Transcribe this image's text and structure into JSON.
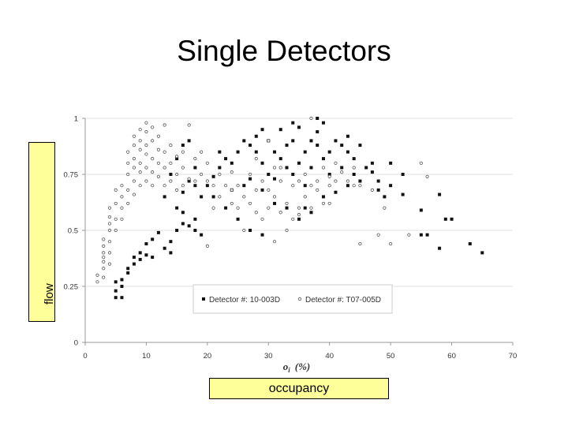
{
  "slide": {
    "title": "Single Detectors",
    "flow_label": "flow",
    "occupancy_label": "occupancy"
  },
  "chart_data": {
    "type": "scatter",
    "xlabel": "o_i (%)",
    "xlabel_main": "o",
    "xlabel_sub": "i",
    "xlabel_unit": "(%)",
    "xlim": [
      0,
      70
    ],
    "ylim": [
      0,
      1
    ],
    "x_ticks": [
      "0",
      "10",
      "20",
      "30",
      "40",
      "50",
      "60",
      "70"
    ],
    "x_tick_values": [
      0,
      10,
      20,
      30,
      40,
      50,
      60,
      70
    ],
    "y_ticks": [
      "0",
      "0.25",
      "0.5",
      "0.75",
      "1"
    ],
    "y_tick_values": [
      0,
      0.25,
      0.5,
      0.75,
      1
    ],
    "grid": "horizontal",
    "legend_position": "bottom-center-inside",
    "series": [
      {
        "name": "Detector #: 10-003D",
        "marker": "filled-square",
        "color": "#111111",
        "points": [
          [
            5,
            0.2
          ],
          [
            6,
            0.2
          ],
          [
            5,
            0.23
          ],
          [
            6,
            0.25
          ],
          [
            5,
            0.27
          ],
          [
            6,
            0.28
          ],
          [
            7,
            0.31
          ],
          [
            7,
            0.33
          ],
          [
            8,
            0.35
          ],
          [
            8,
            0.38
          ],
          [
            9,
            0.37
          ],
          [
            9,
            0.4
          ],
          [
            10,
            0.39
          ],
          [
            11,
            0.38
          ],
          [
            10,
            0.44
          ],
          [
            11,
            0.46
          ],
          [
            12,
            0.49
          ],
          [
            13,
            0.42
          ],
          [
            14,
            0.4
          ],
          [
            14,
            0.45
          ],
          [
            15,
            0.5
          ],
          [
            16,
            0.53
          ],
          [
            17,
            0.52
          ],
          [
            18,
            0.55
          ],
          [
            18,
            0.5
          ],
          [
            19,
            0.48
          ],
          [
            13,
            0.65
          ],
          [
            15,
            0.6
          ],
          [
            16,
            0.58
          ],
          [
            16,
            0.67
          ],
          [
            17,
            0.72
          ],
          [
            18,
            0.7
          ],
          [
            19,
            0.65
          ],
          [
            14,
            0.75
          ],
          [
            15,
            0.82
          ],
          [
            16,
            0.88
          ],
          [
            17,
            0.9
          ],
          [
            18,
            0.78
          ],
          [
            20,
            0.7
          ],
          [
            21,
            0.74
          ],
          [
            22,
            0.78
          ],
          [
            22,
            0.85
          ],
          [
            23,
            0.82
          ],
          [
            24,
            0.8
          ],
          [
            25,
            0.85
          ],
          [
            24,
            0.68
          ],
          [
            26,
            0.9
          ],
          [
            26,
            0.7
          ],
          [
            27,
            0.88
          ],
          [
            28,
            0.85
          ],
          [
            28,
            0.92
          ],
          [
            29,
            0.8
          ],
          [
            29,
            0.95
          ],
          [
            30,
            0.75
          ],
          [
            30,
            0.9
          ],
          [
            31,
            0.85
          ],
          [
            32,
            0.82
          ],
          [
            32,
            0.95
          ],
          [
            33,
            0.78
          ],
          [
            33,
            0.88
          ],
          [
            34,
            0.9
          ],
          [
            34,
            0.75
          ],
          [
            35,
            0.8
          ],
          [
            35,
            0.96
          ],
          [
            36,
            0.85
          ],
          [
            36,
            0.7
          ],
          [
            37,
            0.9
          ],
          [
            37,
            0.78
          ],
          [
            38,
            0.88
          ],
          [
            38,
            0.94
          ],
          [
            39,
            0.82
          ],
          [
            39,
            0.98
          ],
          [
            40,
            0.85
          ],
          [
            40,
            0.75
          ],
          [
            41,
            0.9
          ],
          [
            42,
            0.88
          ],
          [
            42,
            0.78
          ],
          [
            43,
            0.85
          ],
          [
            43,
            0.7
          ],
          [
            44,
            0.82
          ],
          [
            44,
            0.75
          ],
          [
            45,
            0.88
          ],
          [
            45,
            0.72
          ],
          [
            46,
            0.78
          ],
          [
            47,
            0.76
          ],
          [
            48,
            0.72
          ],
          [
            48,
            0.68
          ],
          [
            49,
            0.65
          ],
          [
            50,
            0.8
          ],
          [
            50,
            0.7
          ],
          [
            52,
            0.75
          ],
          [
            52,
            0.66
          ],
          [
            55,
            0.59
          ],
          [
            56,
            0.48
          ],
          [
            58,
            0.66
          ],
          [
            58,
            0.42
          ],
          [
            59,
            0.55
          ],
          [
            60,
            0.55
          ],
          [
            63,
            0.44
          ],
          [
            65,
            0.4
          ],
          [
            27,
            0.73
          ],
          [
            29,
            0.68
          ],
          [
            31,
            0.62
          ],
          [
            33,
            0.6
          ],
          [
            35,
            0.55
          ],
          [
            37,
            0.58
          ],
          [
            39,
            0.65
          ],
          [
            41,
            0.67
          ],
          [
            23,
            0.6
          ],
          [
            25,
            0.55
          ],
          [
            27,
            0.5
          ],
          [
            29,
            0.48
          ],
          [
            21,
            0.65
          ],
          [
            34,
            0.98
          ],
          [
            38,
            1.0
          ],
          [
            36,
            0.6
          ],
          [
            31,
            0.73
          ],
          [
            43,
            0.92
          ],
          [
            47,
            0.8
          ],
          [
            55,
            0.48
          ]
        ]
      },
      {
        "name": "Detector #: T07-005D",
        "marker": "open-circle",
        "color": "#555555",
        "points": [
          [
            2,
            0.27
          ],
          [
            2,
            0.3
          ],
          [
            3,
            0.29
          ],
          [
            3,
            0.33
          ],
          [
            3,
            0.36
          ],
          [
            3,
            0.38
          ],
          [
            3,
            0.4
          ],
          [
            3,
            0.43
          ],
          [
            3,
            0.46
          ],
          [
            4,
            0.35
          ],
          [
            4,
            0.4
          ],
          [
            4,
            0.45
          ],
          [
            4,
            0.5
          ],
          [
            4,
            0.53
          ],
          [
            4,
            0.56
          ],
          [
            4,
            0.6
          ],
          [
            5,
            0.5
          ],
          [
            5,
            0.55
          ],
          [
            5,
            0.62
          ],
          [
            5,
            0.68
          ],
          [
            6,
            0.55
          ],
          [
            6,
            0.6
          ],
          [
            6,
            0.65
          ],
          [
            6,
            0.7
          ],
          [
            7,
            0.62
          ],
          [
            7,
            0.68
          ],
          [
            7,
            0.75
          ],
          [
            7,
            0.8
          ],
          [
            7,
            0.85
          ],
          [
            8,
            0.66
          ],
          [
            8,
            0.72
          ],
          [
            8,
            0.78
          ],
          [
            8,
            0.82
          ],
          [
            8,
            0.88
          ],
          [
            8,
            0.92
          ],
          [
            9,
            0.7
          ],
          [
            9,
            0.76
          ],
          [
            9,
            0.8
          ],
          [
            9,
            0.86
          ],
          [
            9,
            0.9
          ],
          [
            9,
            0.95
          ],
          [
            10,
            0.72
          ],
          [
            10,
            0.78
          ],
          [
            10,
            0.84
          ],
          [
            10,
            0.88
          ],
          [
            10,
            0.94
          ],
          [
            10,
            0.98
          ],
          [
            11,
            0.7
          ],
          [
            11,
            0.76
          ],
          [
            11,
            0.82
          ],
          [
            11,
            0.9
          ],
          [
            11,
            0.96
          ],
          [
            12,
            0.74
          ],
          [
            12,
            0.8
          ],
          [
            12,
            0.86
          ],
          [
            12,
            0.92
          ],
          [
            13,
            0.7
          ],
          [
            13,
            0.78
          ],
          [
            13,
            0.85
          ],
          [
            13,
            0.97
          ],
          [
            14,
            0.72
          ],
          [
            14,
            0.8
          ],
          [
            14,
            0.88
          ],
          [
            15,
            0.68
          ],
          [
            15,
            0.75
          ],
          [
            15,
            0.83
          ],
          [
            16,
            0.7
          ],
          [
            16,
            0.78
          ],
          [
            16,
            0.85
          ],
          [
            17,
            0.73
          ],
          [
            17,
            0.97
          ],
          [
            18,
            0.72
          ],
          [
            18,
            0.82
          ],
          [
            19,
            0.75
          ],
          [
            19,
            0.85
          ],
          [
            20,
            0.72
          ],
          [
            20,
            0.8
          ],
          [
            20,
            0.43
          ],
          [
            21,
            0.7
          ],
          [
            21,
            0.6
          ],
          [
            22,
            0.65
          ],
          [
            22,
            0.75
          ],
          [
            23,
            0.7
          ],
          [
            24,
            0.62
          ],
          [
            24,
            0.76
          ],
          [
            25,
            0.6
          ],
          [
            25,
            0.7
          ],
          [
            26,
            0.5
          ],
          [
            26,
            0.65
          ],
          [
            27,
            0.62
          ],
          [
            27,
            0.75
          ],
          [
            28,
            0.58
          ],
          [
            28,
            0.68
          ],
          [
            29,
            0.55
          ],
          [
            29,
            0.72
          ],
          [
            30,
            0.6
          ],
          [
            30,
            0.68
          ],
          [
            31,
            0.65
          ],
          [
            31,
            0.78
          ],
          [
            32,
            0.72
          ],
          [
            32,
            0.58
          ],
          [
            33,
            0.5
          ],
          [
            33,
            0.62
          ],
          [
            34,
            0.55
          ],
          [
            34,
            0.7
          ],
          [
            35,
            0.6
          ],
          [
            35,
            0.72
          ],
          [
            36,
            0.65
          ],
          [
            36,
            0.75
          ],
          [
            37,
            0.7
          ],
          [
            37,
            0.6
          ],
          [
            38,
            0.68
          ],
          [
            38,
            0.72
          ],
          [
            39,
            0.78
          ],
          [
            39,
            0.62
          ],
          [
            40,
            0.74
          ],
          [
            40,
            0.7
          ],
          [
            41,
            0.72
          ],
          [
            41,
            0.8
          ],
          [
            42,
            0.76
          ],
          [
            43,
            0.72
          ],
          [
            44,
            0.7
          ],
          [
            44,
            0.78
          ],
          [
            45,
            0.7
          ],
          [
            45,
            0.44
          ],
          [
            47,
            0.68
          ],
          [
            48,
            0.48
          ],
          [
            49,
            0.6
          ],
          [
            50,
            0.44
          ],
          [
            53,
            0.48
          ],
          [
            55,
            0.8
          ],
          [
            56,
            0.74
          ],
          [
            31,
            0.45
          ],
          [
            35,
            0.57
          ],
          [
            37,
            1.0
          ],
          [
            40,
            0.62
          ],
          [
            24,
            0.68
          ],
          [
            28,
            0.82
          ],
          [
            30,
            0.9
          ],
          [
            32,
            0.78
          ]
        ]
      }
    ]
  }
}
